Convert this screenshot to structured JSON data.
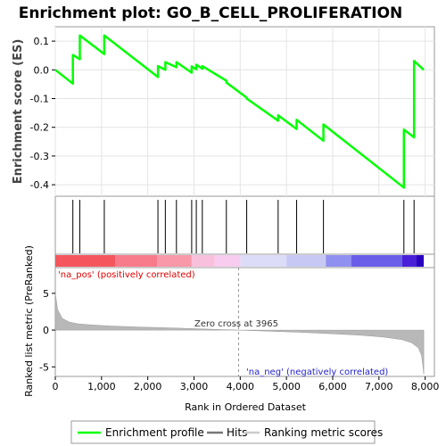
{
  "chart_data": {
    "type": "line",
    "title": "Enrichment plot: GO_B_CELL_PROLIFERATION",
    "es_ylabel": "Enrichment score (ES)",
    "rank_ylabel": "Ranked list metric (PreRanked)",
    "xlabel": "Rank in Ordered Dataset",
    "xlim": [
      0,
      8200
    ],
    "es_ylim": [
      -0.44,
      0.15
    ],
    "rank_ylim": [
      -6.3,
      8.5
    ],
    "x_ticks": [
      0,
      1000,
      2000,
      3000,
      4000,
      5000,
      6000,
      7000,
      8000
    ],
    "x_tick_labels": [
      "0",
      "1,000",
      "2,000",
      "3,000",
      "4,000",
      "5,000",
      "6,000",
      "7,000",
      "8,000"
    ],
    "es_ticks": [
      0.1,
      0.0,
      -0.1,
      -0.2,
      -0.3,
      -0.4
    ],
    "es_tick_labels": [
      "0.1",
      "0.0",
      "-0.1",
      "-0.2",
      "-0.3",
      "-0.4"
    ],
    "rank_ticks": [
      5,
      0,
      -5
    ],
    "rank_tick_labels": [
      "5",
      "0",
      "-5"
    ],
    "total_ranks": 7970,
    "hits": [
      380,
      530,
      1060,
      2220,
      2380,
      2620,
      2950,
      3050,
      3180,
      3700,
      4140,
      4820,
      5220,
      5800,
      7540,
      7760
    ],
    "enrichment_profile": {
      "x": [
        0,
        380,
        380,
        530,
        530,
        1060,
        1060,
        2220,
        2220,
        2380,
        2380,
        2620,
        2620,
        2950,
        2950,
        3050,
        3050,
        3180,
        3180,
        3700,
        3700,
        4140,
        4140,
        4820,
        4820,
        5220,
        5220,
        5800,
        5800,
        7540,
        7540,
        7760,
        7760,
        7970
      ],
      "y": [
        0.0,
        -0.048,
        0.052,
        0.037,
        0.12,
        0.055,
        0.12,
        -0.025,
        0.013,
        0.0,
        0.027,
        0.009,
        0.027,
        -0.01,
        0.012,
        0.002,
        0.018,
        0.004,
        0.013,
        -0.038,
        -0.044,
        -0.097,
        -0.1,
        -0.177,
        -0.158,
        -0.206,
        -0.174,
        -0.247,
        -0.19,
        -0.41,
        -0.208,
        -0.235,
        0.031,
        0.0
      ]
    },
    "ranked_metric": {
      "x": [
        0,
        50,
        150,
        300,
        500,
        800,
        1200,
        1800,
        2500,
        3200,
        3965,
        4600,
        5300,
        6000,
        6600,
        7100,
        7500,
        7700,
        7850,
        7920,
        7950,
        7970
      ],
      "y": [
        5.0,
        2.8,
        1.6,
        1.1,
        0.85,
        0.7,
        0.55,
        0.42,
        0.3,
        0.15,
        0.0,
        -0.15,
        -0.3,
        -0.5,
        -0.7,
        -0.95,
        -1.3,
        -1.7,
        -2.4,
        -3.4,
        -4.8,
        -6.0
      ]
    },
    "zero_cross": 3965,
    "zero_cross_label": "Zero cross at 3965",
    "pos_label": "'na_pos' (positively correlated)",
    "neg_label": "'na_neg' (negatively correlated)",
    "heat_segments": [
      {
        "from": 0,
        "to": 1300,
        "color": "#f5565e"
      },
      {
        "from": 1300,
        "to": 2200,
        "color": "#f77b8a"
      },
      {
        "from": 2200,
        "to": 2950,
        "color": "#f898a8"
      },
      {
        "from": 2950,
        "to": 3450,
        "color": "#f8c0dc"
      },
      {
        "from": 3450,
        "to": 4000,
        "color": "#f8ccee"
      },
      {
        "from": 4000,
        "to": 5000,
        "color": "#dcdcf8"
      },
      {
        "from": 5000,
        "to": 5850,
        "color": "#c8c8f5"
      },
      {
        "from": 5850,
        "to": 6400,
        "color": "#9090f0"
      },
      {
        "from": 6400,
        "to": 7500,
        "color": "#6a5ee8"
      },
      {
        "from": 7500,
        "to": 7800,
        "color": "#4a1fd8"
      },
      {
        "from": 7800,
        "to": 7970,
        "color": "#2a00c0"
      }
    ],
    "legend": [
      {
        "label": "Enrichment profile",
        "color": "#00ff00"
      },
      {
        "label": "Hits",
        "color": "#777777"
      },
      {
        "label": "Ranking metric scores",
        "color": "#cccccc"
      }
    ],
    "profile_color": "#00ff00",
    "metric_fill_color": "#b8b8b8",
    "pos_label_color": "#e00000",
    "neg_label_color": "#2222cc"
  }
}
